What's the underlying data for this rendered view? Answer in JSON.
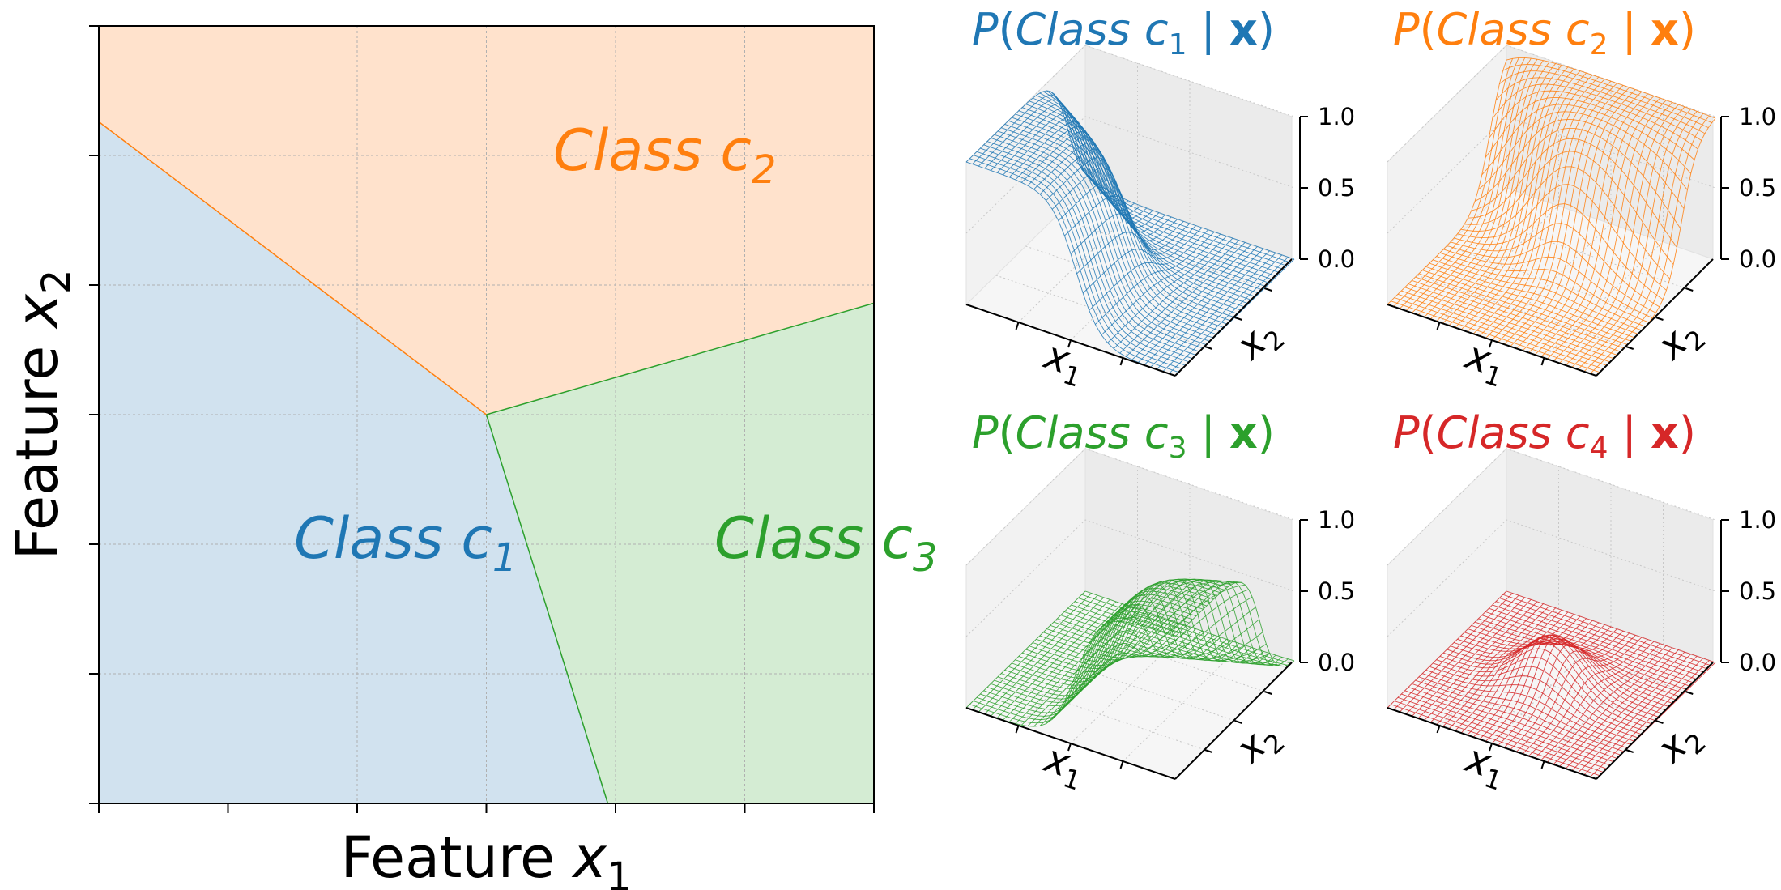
{
  "colors": {
    "c1": "#1f77b4",
    "c2": "#ff7f0e",
    "c3": "#2ca02c",
    "c4": "#d62728",
    "c1_fill": "#d1e2ef",
    "c2_fill": "#ffe2cc",
    "c3_fill": "#d4ecd3",
    "axis": "#000000",
    "grid": "#b0b0b0",
    "pane": "#f2f2f2"
  },
  "chart_data": [
    {
      "type": "area",
      "subtype": "decision-regions",
      "title": "",
      "xlabel": {
        "prefix": "Feature ",
        "var": "x",
        "sub": "1"
      },
      "ylabel": {
        "prefix": "Feature ",
        "var": "x",
        "sub": "2"
      },
      "xlim": [
        0,
        6
      ],
      "ylim": [
        0,
        6
      ],
      "tick_labels_visible": false,
      "grid": true,
      "junction": [
        3,
        3
      ],
      "boundaries": [
        {
          "between": [
            "c1",
            "c2"
          ],
          "points": [
            [
              0,
              5.26
            ],
            [
              3,
              3
            ]
          ]
        },
        {
          "between": [
            "c2",
            "c3"
          ],
          "points": [
            [
              3,
              3
            ],
            [
              6,
              3.86
            ]
          ]
        },
        {
          "between": [
            "c1",
            "c3"
          ],
          "points": [
            [
              3,
              3
            ],
            [
              3.94,
              0
            ]
          ]
        }
      ],
      "regions": [
        {
          "id": "c1",
          "label": {
            "text": "Class ",
            "var": "c",
            "sub": "1"
          },
          "label_at": [
            1.5,
            2.0
          ]
        },
        {
          "id": "c2",
          "label": {
            "text": "Class ",
            "var": "c",
            "sub": "2"
          },
          "label_at": [
            3.5,
            5.0
          ]
        },
        {
          "id": "c3",
          "label": {
            "text": "Class ",
            "var": "c",
            "sub": "3"
          },
          "label_at": [
            4.8,
            2.0
          ]
        }
      ]
    },
    {
      "type": "surface",
      "class": "c1",
      "title": {
        "pre": "P(",
        "text": "Class ",
        "var": "c",
        "sub": "1",
        "mid": " | ",
        "bold": "x",
        "post": ")"
      },
      "xlabel": {
        "var": "x",
        "sub": "1"
      },
      "ylabel": {
        "var": "x",
        "sub": "2"
      },
      "zlim": [
        0,
        1
      ],
      "zticks": [
        "0.0",
        "0.5",
        "1.0"
      ],
      "peak": 1.0
    },
    {
      "type": "surface",
      "class": "c2",
      "title": {
        "pre": "P(",
        "text": "Class ",
        "var": "c",
        "sub": "2",
        "mid": " | ",
        "bold": "x",
        "post": ")"
      },
      "xlabel": {
        "var": "x",
        "sub": "1"
      },
      "ylabel": {
        "var": "x",
        "sub": "2"
      },
      "zlim": [
        0,
        1
      ],
      "zticks": [
        "0.0",
        "0.5",
        "1.0"
      ],
      "peak": 1.0
    },
    {
      "type": "surface",
      "class": "c3",
      "title": {
        "pre": "P(",
        "text": "Class ",
        "var": "c",
        "sub": "3",
        "mid": " | ",
        "bold": "x",
        "post": ")"
      },
      "xlabel": {
        "var": "x",
        "sub": "1"
      },
      "ylabel": {
        "var": "x",
        "sub": "2"
      },
      "zlim": [
        0,
        1
      ],
      "zticks": [
        "0.0",
        "0.5",
        "1.0"
      ],
      "peak": 0.65
    },
    {
      "type": "surface",
      "class": "c4",
      "title": {
        "pre": "P(",
        "text": "Class ",
        "var": "c",
        "sub": "4",
        "mid": " | ",
        "bold": "x",
        "post": ")"
      },
      "xlabel": {
        "var": "x",
        "sub": "1"
      },
      "ylabel": {
        "var": "x",
        "sub": "2"
      },
      "zlim": [
        0,
        1
      ],
      "zticks": [
        "0.0",
        "0.5",
        "1.0"
      ],
      "peak": 0.35
    }
  ]
}
